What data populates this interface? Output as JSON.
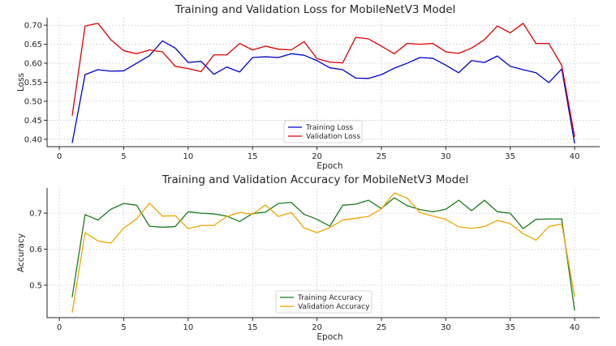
{
  "chart_data": [
    {
      "type": "line",
      "title": "Training and Validation Loss for MobileNetV3 Model",
      "xlabel": "Epoch",
      "ylabel": "Loss",
      "xlim": [
        -0.95,
        41.95
      ],
      "ylim": [
        0.3805,
        0.7195
      ],
      "xticks": [
        0,
        5,
        10,
        15,
        20,
        25,
        30,
        35,
        40
      ],
      "yticks": [
        0.4,
        0.45,
        0.5,
        0.55,
        0.6,
        0.65,
        0.7
      ],
      "ytick_labels": [
        "0.40",
        "0.45",
        "0.50",
        "0.55",
        "0.60",
        "0.65",
        "0.70"
      ],
      "grid": true,
      "legend": "bottom-center",
      "x": [
        1,
        2,
        3,
        4,
        5,
        6,
        7,
        8,
        9,
        10,
        11,
        12,
        13,
        14,
        15,
        16,
        17,
        18,
        19,
        20,
        21,
        22,
        23,
        24,
        25,
        26,
        27,
        28,
        29,
        30,
        31,
        32,
        33,
        34,
        35,
        36,
        37,
        38,
        39,
        40
      ],
      "series": [
        {
          "name": "Training Loss",
          "color": "#0000cc",
          "values": [
            0.39,
            0.57,
            0.583,
            0.579,
            0.58,
            0.6,
            0.62,
            0.659,
            0.64,
            0.602,
            0.605,
            0.571,
            0.59,
            0.577,
            0.615,
            0.617,
            0.615,
            0.625,
            0.621,
            0.607,
            0.588,
            0.583,
            0.561,
            0.56,
            0.57,
            0.587,
            0.6,
            0.615,
            0.613,
            0.595,
            0.575,
            0.607,
            0.602,
            0.619,
            0.592,
            0.583,
            0.575,
            0.549,
            0.585,
            0.389
          ]
        },
        {
          "name": "Validation Loss",
          "color": "#dd0000",
          "values": [
            0.462,
            0.698,
            0.705,
            0.662,
            0.633,
            0.625,
            0.635,
            0.63,
            0.592,
            0.586,
            0.578,
            0.622,
            0.622,
            0.652,
            0.635,
            0.645,
            0.637,
            0.635,
            0.657,
            0.612,
            0.603,
            0.601,
            0.668,
            0.664,
            0.645,
            0.625,
            0.652,
            0.65,
            0.652,
            0.63,
            0.626,
            0.64,
            0.662,
            0.698,
            0.68,
            0.705,
            0.652,
            0.652,
            0.594,
            0.406
          ]
        }
      ]
    },
    {
      "type": "line",
      "title": "Training and Validation Accuracy for MobileNetV3 Model",
      "xlabel": "Epoch",
      "ylabel": "Accuracy",
      "xlim": [
        -0.95,
        41.95
      ],
      "ylim": [
        0.41,
        0.77
      ],
      "xticks": [
        0,
        5,
        10,
        15,
        20,
        25,
        30,
        35,
        40
      ],
      "yticks": [
        0.5,
        0.6,
        0.7
      ],
      "ytick_labels": [
        "0.5",
        "0.6",
        "0.7"
      ],
      "grid": true,
      "legend": "bottom-center",
      "x": [
        1,
        2,
        3,
        4,
        5,
        6,
        7,
        8,
        9,
        10,
        11,
        12,
        13,
        14,
        15,
        16,
        17,
        18,
        19,
        20,
        21,
        22,
        23,
        24,
        25,
        26,
        27,
        28,
        29,
        30,
        31,
        32,
        33,
        34,
        35,
        36,
        37,
        38,
        39,
        40
      ],
      "series": [
        {
          "name": "Training Accuracy",
          "color": "#1a7a1a",
          "values": [
            0.467,
            0.696,
            0.681,
            0.711,
            0.727,
            0.722,
            0.664,
            0.661,
            0.663,
            0.704,
            0.7,
            0.698,
            0.692,
            0.677,
            0.699,
            0.703,
            0.727,
            0.73,
            0.697,
            0.683,
            0.664,
            0.722,
            0.725,
            0.736,
            0.713,
            0.743,
            0.721,
            0.71,
            0.704,
            0.711,
            0.736,
            0.707,
            0.736,
            0.704,
            0.7,
            0.657,
            0.683,
            0.684,
            0.684,
            0.43
          ]
        },
        {
          "name": "Validation Accuracy",
          "color": "#f0a500",
          "values": [
            0.424,
            0.646,
            0.623,
            0.617,
            0.659,
            0.684,
            0.728,
            0.692,
            0.693,
            0.657,
            0.666,
            0.666,
            0.691,
            0.702,
            0.697,
            0.723,
            0.691,
            0.702,
            0.659,
            0.646,
            0.66,
            0.681,
            0.686,
            0.691,
            0.712,
            0.756,
            0.742,
            0.702,
            0.692,
            0.683,
            0.662,
            0.658,
            0.663,
            0.68,
            0.671,
            0.643,
            0.625,
            0.663,
            0.67,
            0.468
          ]
        }
      ]
    }
  ]
}
